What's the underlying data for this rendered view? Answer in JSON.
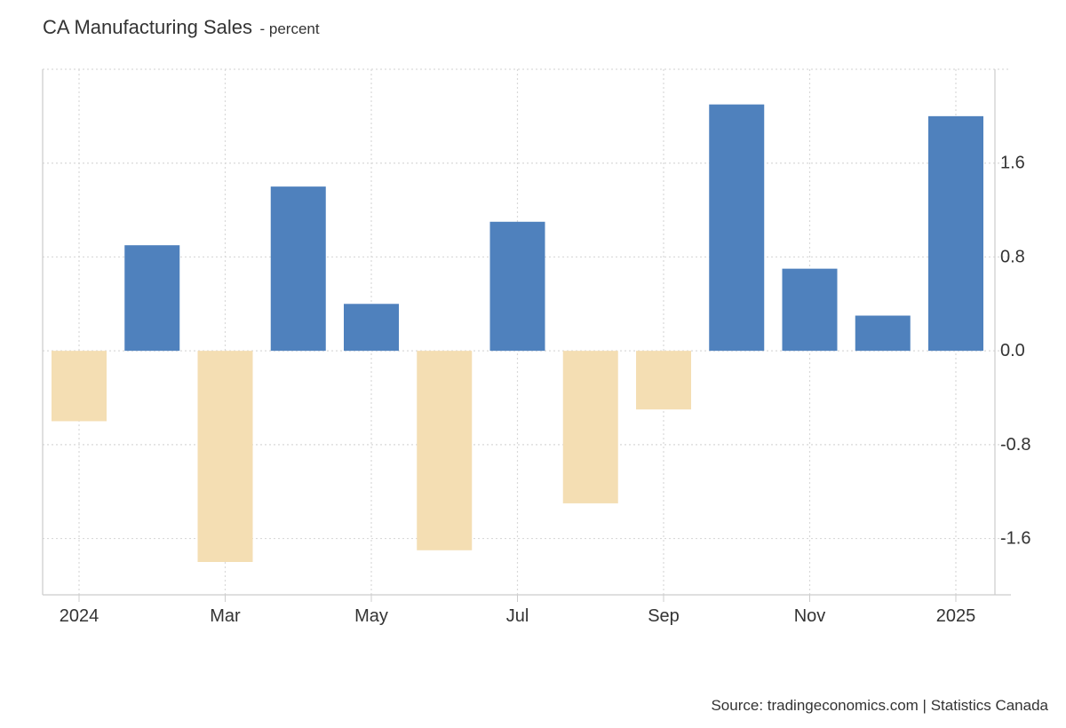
{
  "title": {
    "main": "CA Manufacturing Sales",
    "unit": "- percent"
  },
  "source": "Source: tradingeconomics.com | Statistics Canada",
  "chart_data": {
    "type": "bar",
    "categories": [
      "2024-01",
      "2024-02",
      "2024-03",
      "2024-04",
      "2024-05",
      "2024-06",
      "2024-07",
      "2024-08",
      "2024-09",
      "2024-10",
      "2024-11",
      "2024-12",
      "2025-01"
    ],
    "values": [
      -0.6,
      0.9,
      -1.8,
      1.4,
      0.4,
      -1.7,
      1.1,
      -1.3,
      -0.5,
      2.1,
      0.7,
      0.3,
      2.0
    ],
    "xtick_labels": [
      {
        "category": "2024-01",
        "label": "2024"
      },
      {
        "category": "2024-03",
        "label": "Mar"
      },
      {
        "category": "2024-05",
        "label": "May"
      },
      {
        "category": "2024-07",
        "label": "Jul"
      },
      {
        "category": "2024-09",
        "label": "Sep"
      },
      {
        "category": "2024-11",
        "label": "Nov"
      },
      {
        "category": "2025-01",
        "label": "2025"
      }
    ],
    "yticks": [
      1.6,
      0.8,
      0.0,
      -0.8,
      -1.6
    ],
    "ytick_labels": [
      "1.6",
      "0.8",
      "0.0",
      "-0.8",
      "-1.6"
    ],
    "ylim": [
      -2.08,
      2.4
    ],
    "y_axis_side": "right",
    "grid": true,
    "colors": {
      "positive": "#4f81bd",
      "negative": "#f4deb3",
      "grid": "#d9d9d9",
      "axis": "#cccccc"
    }
  }
}
